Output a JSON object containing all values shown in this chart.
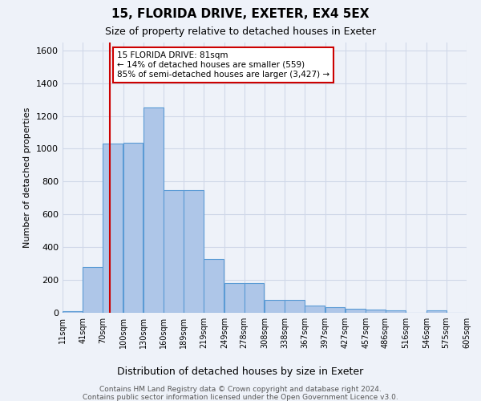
{
  "title1": "15, FLORIDA DRIVE, EXETER, EX4 5EX",
  "title2": "Size of property relative to detached houses in Exeter",
  "xlabel": "Distribution of detached houses by size in Exeter",
  "ylabel": "Number of detached properties",
  "footer1": "Contains HM Land Registry data © Crown copyright and database right 2024.",
  "footer2": "Contains public sector information licensed under the Open Government Licence v3.0.",
  "bar_left_edges": [
    11,
    41,
    70,
    100,
    130,
    160,
    189,
    219,
    249,
    278,
    308,
    338,
    367,
    397,
    427,
    457,
    486,
    516,
    546,
    575
  ],
  "bar_heights": [
    10,
    280,
    1030,
    1035,
    1250,
    750,
    750,
    330,
    180,
    180,
    80,
    80,
    45,
    35,
    25,
    20,
    15,
    0,
    15,
    0
  ],
  "bin_width": 29,
  "bar_color": "#aec6e8",
  "bar_edge_color": "#5b9bd5",
  "grid_color": "#d0d8e8",
  "property_size": 81,
  "red_line_color": "#cc0000",
  "annotation_line1": "15 FLORIDA DRIVE: 81sqm",
  "annotation_line2": "← 14% of detached houses are smaller (559)",
  "annotation_line3": "85% of semi-detached houses are larger (3,427) →",
  "annotation_box_color": "#ffffff",
  "annotation_box_edge": "#cc0000",
  "ylim": [
    0,
    1650
  ],
  "ytick_vals": [
    0,
    200,
    400,
    600,
    800,
    1000,
    1200,
    1400,
    1600
  ],
  "xtick_labels": [
    "11sqm",
    "41sqm",
    "70sqm",
    "100sqm",
    "130sqm",
    "160sqm",
    "189sqm",
    "219sqm",
    "249sqm",
    "278sqm",
    "308sqm",
    "338sqm",
    "367sqm",
    "397sqm",
    "427sqm",
    "457sqm",
    "486sqm",
    "516sqm",
    "546sqm",
    "575sqm",
    "605sqm"
  ],
  "xtick_positions": [
    11,
    41,
    70,
    100,
    130,
    160,
    189,
    219,
    249,
    278,
    308,
    338,
    367,
    397,
    427,
    457,
    486,
    516,
    546,
    575,
    605
  ],
  "background_color": "#eef2f9",
  "title1_fontsize": 11,
  "title2_fontsize": 9
}
